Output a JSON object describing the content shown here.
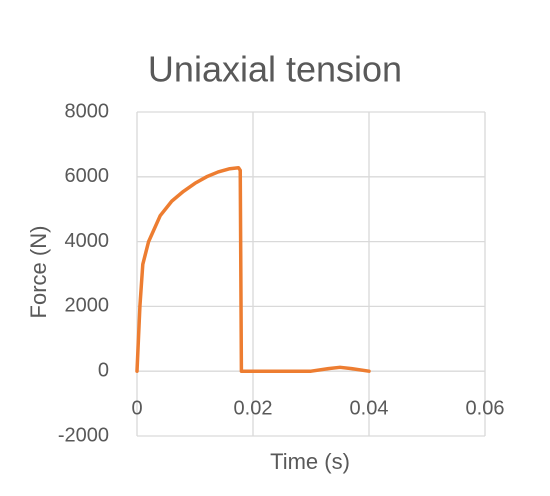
{
  "chart_data": {
    "type": "line",
    "title": "Uniaxial tension",
    "x_label": "Time (s)",
    "y_label": "Force (N)",
    "x": [
      0,
      0.0005,
      0.001,
      0.002,
      0.004,
      0.006,
      0.008,
      0.01,
      0.012,
      0.014,
      0.016,
      0.0175,
      0.0178,
      0.018,
      0.02,
      0.025,
      0.03,
      0.033,
      0.035,
      0.037,
      0.04
    ],
    "series": [
      {
        "name": "Force",
        "color": "#ed7d31",
        "values": [
          0,
          2000,
          3300,
          4000,
          4800,
          5250,
          5550,
          5800,
          6000,
          6150,
          6250,
          6280,
          6200,
          0,
          0,
          0,
          0,
          80,
          120,
          80,
          0
        ]
      }
    ],
    "xlim": [
      0,
      0.06
    ],
    "xticks": [
      0,
      0.02,
      0.04,
      0.06
    ],
    "ylim": [
      -2000,
      8000
    ],
    "yticks": [
      -2000,
      0,
      2000,
      4000,
      6000,
      8000
    ],
    "grid": true
  }
}
